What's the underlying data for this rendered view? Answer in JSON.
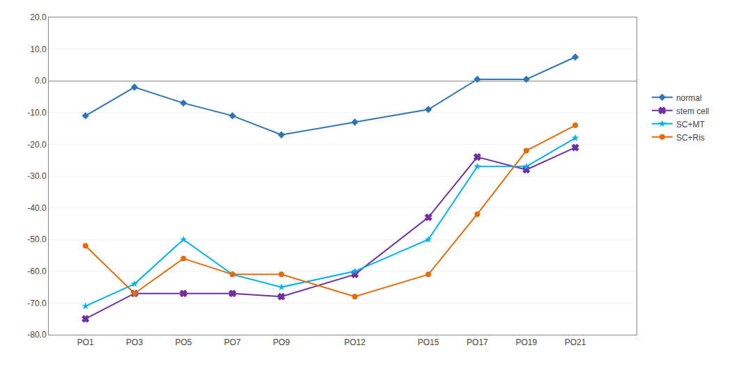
{
  "chart_data": {
    "type": "line",
    "x": [
      1,
      3,
      5,
      7,
      9,
      12,
      15,
      17,
      19,
      21
    ],
    "xlim": [
      -0.5,
      23.5
    ],
    "xticks": [
      {
        "value": 1,
        "label": "PO1"
      },
      {
        "value": 3,
        "label": "PO3"
      },
      {
        "value": 5,
        "label": "PO5"
      },
      {
        "value": 7,
        "label": "PO7"
      },
      {
        "value": 9,
        "label": "PO9"
      },
      {
        "value": 12,
        "label": "PO12"
      },
      {
        "value": 15,
        "label": "PO15"
      },
      {
        "value": 17,
        "label": "PO17"
      },
      {
        "value": 19,
        "label": "PO19"
      },
      {
        "value": 21,
        "label": "PO21"
      }
    ],
    "ylim": [
      -80,
      20
    ],
    "yticks": [
      {
        "value": -80,
        "label": "-80.0"
      },
      {
        "value": -70,
        "label": "-70.0"
      },
      {
        "value": -60,
        "label": "-60.0"
      },
      {
        "value": -50,
        "label": "-50.0"
      },
      {
        "value": -40,
        "label": "-40.0"
      },
      {
        "value": -30,
        "label": "-30.0"
      },
      {
        "value": -20,
        "label": "-20.0"
      },
      {
        "value": -10,
        "label": "-10.0"
      },
      {
        "value": 0,
        "label": "0.0"
      },
      {
        "value": 10,
        "label": "10.0"
      },
      {
        "value": 20,
        "label": "20.0"
      }
    ],
    "grid": "y",
    "legend": "right",
    "series": [
      {
        "name": "normal",
        "color": "#2E75B6",
        "marker": "diamond",
        "values": [
          -11,
          -2,
          -7,
          -11,
          -17,
          -13,
          -9,
          0.5,
          0.5,
          7.5
        ]
      },
      {
        "name": "stem cell",
        "color": "#7030A0",
        "marker": "x",
        "values": [
          -75,
          -67,
          -67,
          -67,
          -68,
          -61,
          -43,
          -24,
          -28,
          -21
        ]
      },
      {
        "name": "SC+MT",
        "color": "#00B0F0",
        "marker": "star",
        "values": [
          -71,
          -64,
          -50,
          -61,
          -65,
          -60,
          -50,
          -27,
          -27,
          -18
        ]
      },
      {
        "name": "SC+Ris",
        "color": "#E36C09",
        "marker": "circle",
        "values": [
          -52,
          -67,
          -56,
          -61,
          -61,
          -68,
          -61,
          -42,
          -22,
          -14
        ]
      }
    ]
  }
}
